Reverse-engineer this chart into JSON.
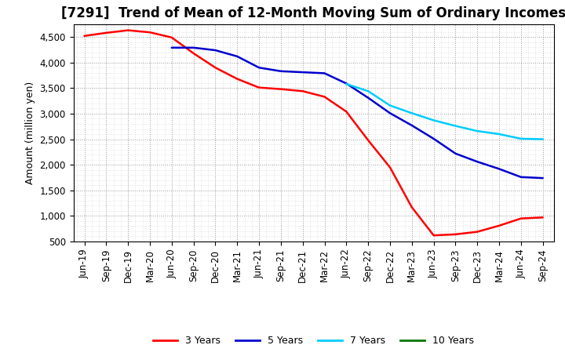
{
  "title": "[7291]  Trend of Mean of 12-Month Moving Sum of Ordinary Incomes",
  "ylabel": "Amount (million yen)",
  "ylim": [
    500,
    4750
  ],
  "yticks": [
    500,
    1000,
    1500,
    2000,
    2500,
    3000,
    3500,
    4000,
    4500
  ],
  "background_color": "#ffffff",
  "grid_color": "#999999",
  "x_labels": [
    "Jun-19",
    "Sep-19",
    "Dec-19",
    "Mar-20",
    "Jun-20",
    "Sep-20",
    "Dec-20",
    "Mar-21",
    "Jun-21",
    "Sep-21",
    "Dec-21",
    "Mar-22",
    "Jun-22",
    "Sep-22",
    "Dec-22",
    "Mar-23",
    "Jun-23",
    "Sep-23",
    "Dec-23",
    "Mar-24",
    "Jun-24",
    "Sep-24"
  ],
  "series": {
    "3 Years": {
      "color": "#ff0000",
      "data": [
        4520,
        4580,
        4630,
        4590,
        4490,
        4180,
        3900,
        3680,
        3510,
        3480,
        3440,
        3330,
        3040,
        2480,
        1950,
        1170,
        620,
        640,
        690,
        810,
        950,
        970
      ]
    },
    "5 Years": {
      "color": "#0000cc",
      "data": [
        null,
        null,
        null,
        null,
        4290,
        4290,
        4240,
        4120,
        3900,
        3830,
        3810,
        3790,
        3590,
        3310,
        3010,
        2770,
        2510,
        2220,
        2060,
        1920,
        1760,
        1740
      ]
    },
    "7 Years": {
      "color": "#00ccff",
      "data": [
        null,
        null,
        null,
        null,
        null,
        null,
        null,
        null,
        null,
        null,
        null,
        null,
        3580,
        3440,
        3160,
        3010,
        2870,
        2760,
        2660,
        2600,
        2510,
        2500
      ]
    },
    "10 Years": {
      "color": "#007700",
      "data": [
        null,
        null,
        null,
        null,
        null,
        null,
        null,
        null,
        null,
        null,
        null,
        null,
        null,
        null,
        null,
        null,
        null,
        null,
        null,
        null,
        null,
        null
      ]
    }
  },
  "legend": [
    "3 Years",
    "5 Years",
    "7 Years",
    "10 Years"
  ],
  "legend_colors": [
    "#ff0000",
    "#0000cc",
    "#00ccff",
    "#007700"
  ],
  "title_fontsize": 12,
  "ylabel_fontsize": 9,
  "tick_fontsize": 8.5,
  "legend_fontsize": 9
}
